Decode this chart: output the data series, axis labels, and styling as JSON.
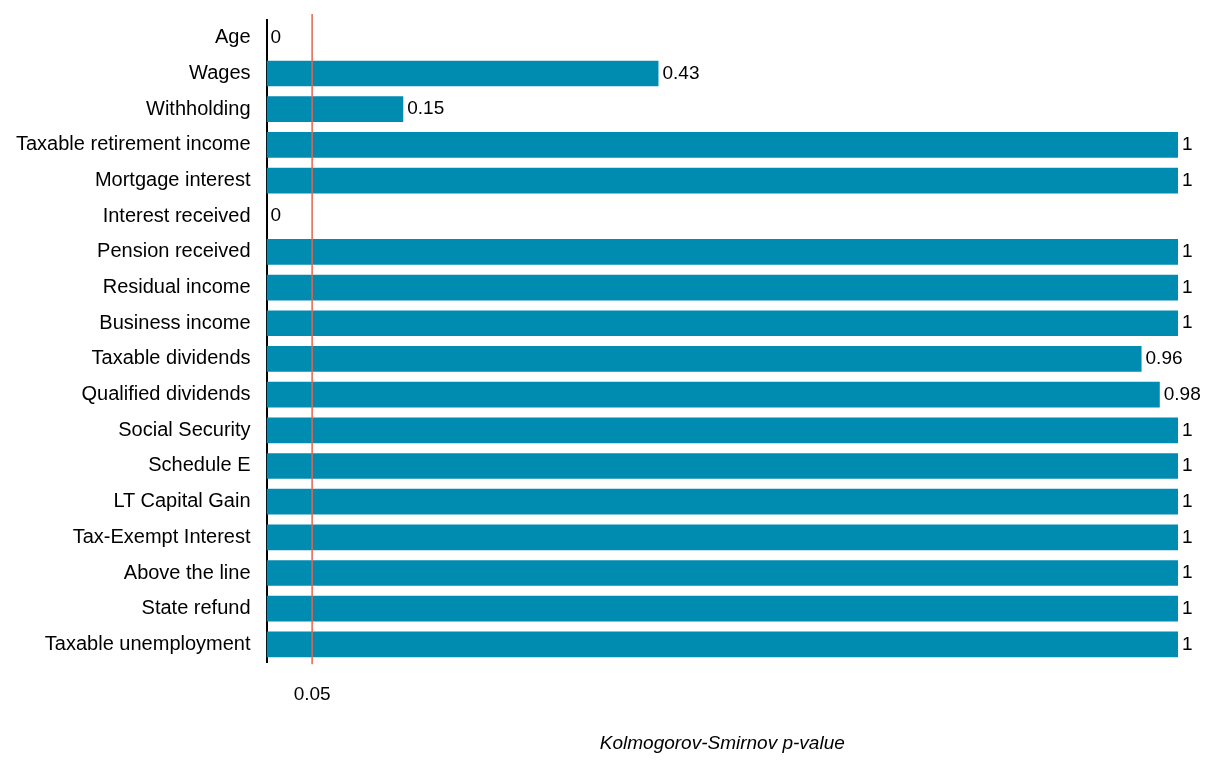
{
  "chart_data": {
    "type": "bar",
    "orientation": "horizontal",
    "xlabel": "Kolmogorov-Smirnov p-value",
    "categories": [
      "Age",
      "Wages",
      "Withholding",
      "Taxable retirement income",
      "Mortgage interest",
      "Interest received",
      "Pension received",
      "Residual income",
      "Business income",
      "Taxable dividends",
      "Qualified dividends",
      "Social Security",
      "Schedule E",
      "LT Capital Gain",
      "Tax-Exempt Interest",
      "Above the line",
      "State refund",
      "Taxable unemployment"
    ],
    "values": [
      0,
      0.43,
      0.15,
      1,
      1,
      0,
      1,
      1,
      1,
      0.96,
      0.98,
      1,
      1,
      1,
      1,
      1,
      1,
      1
    ],
    "color": "#008bb0",
    "xlim": [
      0,
      1
    ],
    "tick_labels": "y",
    "data_labels": true,
    "grid": false,
    "legend": false,
    "ref_lines": [
      {
        "axis": "x",
        "value": 0.05,
        "label": "0.05",
        "color": "#e06650"
      }
    ]
  }
}
